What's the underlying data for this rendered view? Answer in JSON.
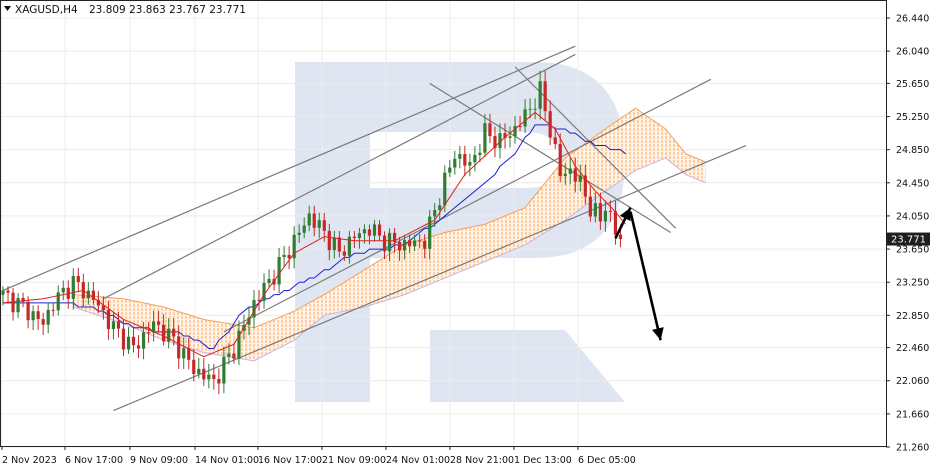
{
  "header": {
    "symbol_label": "XAGUSD,H4",
    "ohlc_label": "23.809 23.863 23.767 23.771"
  },
  "colors": {
    "bull_candle": "#2e7d32",
    "bear_candle": "#c62828",
    "tenkan": "#e0201b",
    "kijun": "#1f1fd0",
    "cloud": "#f2a25a",
    "trendline": "#7a7a7a",
    "arrow": "#000000",
    "price_tag_bg": "#1f1f1f",
    "grid": "#ececec",
    "watermark": "#dfe6f1"
  },
  "chart_data": {
    "type": "candlestick",
    "symbol": "XAGUSD",
    "timeframe": "H4",
    "last_price": 23.771,
    "last_price_label": "23.771",
    "ylim": [
      21.26,
      26.44
    ],
    "y_ticks": [
      "26.440",
      "26.040",
      "25.650",
      "25.250",
      "24.850",
      "24.450",
      "24.050",
      "23.650",
      "23.250",
      "22.850",
      "22.460",
      "22.060",
      "21.660",
      "21.260"
    ],
    "x_ticks": [
      "2 Nov 2023",
      "6 Nov 17:00",
      "9 Nov 09:00",
      "14 Nov 01:00",
      "16 Nov 17:00",
      "21 Nov 09:00",
      "24 Nov 01:00",
      "28 Nov 21:00",
      "1 Dec 13:00",
      "6 Dec 05:00"
    ],
    "grid": true,
    "close_path": [
      [
        0,
        23.1
      ],
      [
        4,
        22.95
      ],
      [
        8,
        22.75
      ],
      [
        10,
        23.0
      ],
      [
        14,
        23.25
      ],
      [
        18,
        23.05
      ],
      [
        22,
        22.7
      ],
      [
        26,
        22.45
      ],
      [
        30,
        22.75
      ],
      [
        34,
        22.55
      ],
      [
        38,
        22.2
      ],
      [
        42,
        22.05
      ],
      [
        46,
        22.45
      ],
      [
        50,
        23.0
      ],
      [
        54,
        23.35
      ],
      [
        58,
        23.75
      ],
      [
        61,
        24.05
      ],
      [
        64,
        23.85
      ],
      [
        67,
        23.6
      ],
      [
        70,
        23.8
      ],
      [
        73,
        23.9
      ],
      [
        76,
        23.75
      ],
      [
        80,
        23.7
      ],
      [
        84,
        23.75
      ],
      [
        87,
        24.3
      ],
      [
        90,
        24.8
      ],
      [
        93,
        24.65
      ],
      [
        96,
        25.05
      ],
      [
        99,
        24.95
      ],
      [
        102,
        25.1
      ],
      [
        105,
        25.35
      ],
      [
        107,
        25.55
      ],
      [
        109,
        25.1
      ],
      [
        111,
        24.55
      ],
      [
        113,
        24.6
      ],
      [
        115,
        24.45
      ],
      [
        117,
        24.15
      ],
      [
        119,
        24.0
      ],
      [
        120,
        24.2
      ],
      [
        122,
        23.85
      ],
      [
        123,
        23.771
      ]
    ],
    "tenkan": [
      [
        0,
        23.0
      ],
      [
        8,
        23.05
      ],
      [
        16,
        23.15
      ],
      [
        24,
        22.8
      ],
      [
        32,
        22.6
      ],
      [
        40,
        22.35
      ],
      [
        46,
        22.5
      ],
      [
        52,
        23.1
      ],
      [
        58,
        23.6
      ],
      [
        64,
        23.8
      ],
      [
        70,
        23.75
      ],
      [
        78,
        23.75
      ],
      [
        86,
        24.0
      ],
      [
        92,
        24.55
      ],
      [
        100,
        25.0
      ],
      [
        106,
        25.3
      ],
      [
        110,
        25.1
      ],
      [
        114,
        24.65
      ],
      [
        118,
        24.35
      ],
      [
        122,
        24.1
      ],
      [
        124,
        23.95
      ]
    ],
    "kijun": [
      [
        0,
        23.0
      ],
      [
        10,
        23.0
      ],
      [
        18,
        22.95
      ],
      [
        26,
        22.7
      ],
      [
        34,
        22.65
      ],
      [
        42,
        22.45
      ],
      [
        48,
        22.9
      ],
      [
        56,
        23.15
      ],
      [
        62,
        23.3
      ],
      [
        70,
        23.6
      ],
      [
        80,
        23.7
      ],
      [
        88,
        24.05
      ],
      [
        96,
        24.45
      ],
      [
        102,
        24.8
      ],
      [
        106,
        25.15
      ],
      [
        112,
        25.1
      ],
      [
        116,
        24.95
      ],
      [
        122,
        24.85
      ],
      [
        124,
        24.8
      ]
    ],
    "cloud_upper": [
      [
        14,
        23.1
      ],
      [
        24,
        23.05
      ],
      [
        32,
        22.95
      ],
      [
        40,
        22.8
      ],
      [
        50,
        22.7
      ],
      [
        58,
        22.9
      ],
      [
        64,
        23.1
      ],
      [
        72,
        23.4
      ],
      [
        80,
        23.7
      ],
      [
        88,
        23.85
      ],
      [
        96,
        23.95
      ],
      [
        104,
        24.15
      ],
      [
        112,
        24.75
      ],
      [
        120,
        25.1
      ],
      [
        126,
        25.35
      ],
      [
        132,
        25.1
      ],
      [
        136,
        24.8
      ],
      [
        140,
        24.7
      ]
    ],
    "cloud_lower": [
      [
        14,
        22.95
      ],
      [
        24,
        22.75
      ],
      [
        32,
        22.55
      ],
      [
        40,
        22.4
      ],
      [
        50,
        22.3
      ],
      [
        58,
        22.55
      ],
      [
        64,
        22.85
      ],
      [
        72,
        22.95
      ],
      [
        80,
        23.1
      ],
      [
        88,
        23.3
      ],
      [
        96,
        23.5
      ],
      [
        104,
        23.7
      ],
      [
        112,
        24.0
      ],
      [
        120,
        24.35
      ],
      [
        126,
        24.6
      ],
      [
        132,
        24.75
      ],
      [
        136,
        24.55
      ],
      [
        140,
        24.45
      ]
    ],
    "channel_lines": [
      [
        [
          0,
          23.15
        ],
        [
          114,
          26.1
        ]
      ],
      [
        [
          20,
          23.05
        ],
        [
          114,
          26.0
        ]
      ],
      [
        [
          22,
          21.7
        ],
        [
          148,
          24.9
        ]
      ],
      [
        [
          44,
          22.65
        ],
        [
          141,
          25.7
        ]
      ],
      [
        [
          85,
          25.65
        ],
        [
          133,
          23.85
        ]
      ],
      [
        [
          102,
          25.85
        ],
        [
          134,
          23.9
        ]
      ]
    ],
    "forecast_arrows": [
      [
        [
          122,
          23.78
        ],
        [
          125,
          24.15
        ]
      ],
      [
        [
          125,
          24.1
        ],
        [
          131,
          22.55
        ]
      ]
    ]
  }
}
